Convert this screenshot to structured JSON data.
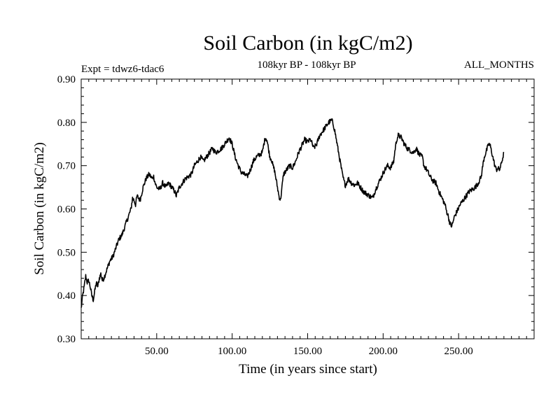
{
  "chart_data": {
    "type": "line",
    "title": "Soil Carbon (in kgC/m2)",
    "subtitle": "108kyr BP - 108kyr BP",
    "experiment": "Expt = tdwz6-tdac6",
    "period": "ALL_MONTHS",
    "xlabel": "Time (in years since start)",
    "ylabel": "Soil Carbon (in kgC/m2)",
    "xlim": [
      0,
      300
    ],
    "ylim": [
      0.3,
      0.9
    ],
    "x_ticks": [
      "50.00",
      "100.00",
      "150.00",
      "200.00",
      "250.00"
    ],
    "x_tick_values": [
      50,
      100,
      150,
      200,
      250
    ],
    "y_ticks": [
      "0.30",
      "0.40",
      "0.50",
      "0.60",
      "0.70",
      "0.80",
      "0.90"
    ],
    "y_tick_values": [
      0.3,
      0.4,
      0.5,
      0.6,
      0.7,
      0.8,
      0.9
    ],
    "grid": false,
    "series": [
      {
        "name": "Soil Carbon",
        "color": "#000000",
        "points": [
          [
            0,
            0.37
          ],
          [
            1,
            0.4
          ],
          [
            2,
            0.42
          ],
          [
            3,
            0.445
          ],
          [
            4,
            0.43
          ],
          [
            5,
            0.435
          ],
          [
            6,
            0.42
          ],
          [
            7,
            0.4
          ],
          [
            8,
            0.39
          ],
          [
            9,
            0.41
          ],
          [
            10,
            0.43
          ],
          [
            11,
            0.42
          ],
          [
            12,
            0.44
          ],
          [
            13,
            0.45
          ],
          [
            14,
            0.435
          ],
          [
            15,
            0.44
          ],
          [
            17,
            0.46
          ],
          [
            19,
            0.48
          ],
          [
            21,
            0.49
          ],
          [
            23,
            0.51
          ],
          [
            25,
            0.53
          ],
          [
            27,
            0.54
          ],
          [
            29,
            0.56
          ],
          [
            31,
            0.58
          ],
          [
            33,
            0.6
          ],
          [
            34,
            0.625
          ],
          [
            35,
            0.62
          ],
          [
            36,
            0.61
          ],
          [
            37,
            0.63
          ],
          [
            39,
            0.62
          ],
          [
            41,
            0.65
          ],
          [
            43,
            0.67
          ],
          [
            45,
            0.68
          ],
          [
            47,
            0.67
          ],
          [
            48,
            0.675
          ],
          [
            49,
            0.66
          ],
          [
            50,
            0.65
          ],
          [
            52,
            0.645
          ],
          [
            54,
            0.66
          ],
          [
            56,
            0.65
          ],
          [
            58,
            0.66
          ],
          [
            60,
            0.65
          ],
          [
            62,
            0.64
          ],
          [
            63,
            0.63
          ],
          [
            65,
            0.65
          ],
          [
            67,
            0.66
          ],
          [
            69,
            0.67
          ],
          [
            71,
            0.675
          ],
          [
            73,
            0.68
          ],
          [
            75,
            0.7
          ],
          [
            77,
            0.71
          ],
          [
            79,
            0.72
          ],
          [
            81,
            0.71
          ],
          [
            83,
            0.72
          ],
          [
            85,
            0.73
          ],
          [
            87,
            0.74
          ],
          [
            89,
            0.73
          ],
          [
            91,
            0.735
          ],
          [
            93,
            0.74
          ],
          [
            95,
            0.75
          ],
          [
            97,
            0.76
          ],
          [
            98,
            0.765
          ],
          [
            100,
            0.75
          ],
          [
            102,
            0.72
          ],
          [
            104,
            0.7
          ],
          [
            106,
            0.685
          ],
          [
            108,
            0.68
          ],
          [
            110,
            0.675
          ],
          [
            112,
            0.69
          ],
          [
            114,
            0.71
          ],
          [
            116,
            0.72
          ],
          [
            118,
            0.725
          ],
          [
            120,
            0.73
          ],
          [
            121,
            0.75
          ],
          [
            122,
            0.765
          ],
          [
            123,
            0.76
          ],
          [
            124,
            0.74
          ],
          [
            125,
            0.72
          ],
          [
            126,
            0.715
          ],
          [
            127,
            0.7
          ],
          [
            128,
            0.69
          ],
          [
            129,
            0.67
          ],
          [
            130,
            0.65
          ],
          [
            131,
            0.63
          ],
          [
            132,
            0.62
          ],
          [
            133,
            0.65
          ],
          [
            134,
            0.68
          ],
          [
            136,
            0.69
          ],
          [
            138,
            0.7
          ],
          [
            140,
            0.695
          ],
          [
            142,
            0.71
          ],
          [
            144,
            0.73
          ],
          [
            146,
            0.745
          ],
          [
            148,
            0.76
          ],
          [
            150,
            0.755
          ],
          [
            152,
            0.76
          ],
          [
            154,
            0.74
          ],
          [
            156,
            0.75
          ],
          [
            158,
            0.77
          ],
          [
            160,
            0.78
          ],
          [
            162,
            0.79
          ],
          [
            164,
            0.8
          ],
          [
            166,
            0.805
          ],
          [
            167,
            0.795
          ],
          [
            168,
            0.78
          ],
          [
            169,
            0.76
          ],
          [
            170,
            0.74
          ],
          [
            171,
            0.72
          ],
          [
            172,
            0.7
          ],
          [
            173,
            0.68
          ],
          [
            174,
            0.665
          ],
          [
            175,
            0.655
          ],
          [
            177,
            0.67
          ],
          [
            179,
            0.66
          ],
          [
            181,
            0.655
          ],
          [
            183,
            0.66
          ],
          [
            185,
            0.65
          ],
          [
            187,
            0.64
          ],
          [
            189,
            0.635
          ],
          [
            191,
            0.63
          ],
          [
            193,
            0.625
          ],
          [
            195,
            0.645
          ],
          [
            197,
            0.66
          ],
          [
            199,
            0.675
          ],
          [
            201,
            0.69
          ],
          [
            203,
            0.7
          ],
          [
            205,
            0.695
          ],
          [
            207,
            0.71
          ],
          [
            208,
            0.74
          ],
          [
            209,
            0.76
          ],
          [
            210,
            0.77
          ],
          [
            212,
            0.765
          ],
          [
            214,
            0.75
          ],
          [
            216,
            0.74
          ],
          [
            218,
            0.735
          ],
          [
            220,
            0.73
          ],
          [
            222,
            0.74
          ],
          [
            224,
            0.725
          ],
          [
            226,
            0.72
          ],
          [
            227,
            0.7
          ],
          [
            229,
            0.69
          ],
          [
            231,
            0.675
          ],
          [
            233,
            0.665
          ],
          [
            235,
            0.66
          ],
          [
            237,
            0.64
          ],
          [
            239,
            0.625
          ],
          [
            241,
            0.61
          ],
          [
            242,
            0.595
          ],
          [
            243,
            0.585
          ],
          [
            244,
            0.57
          ],
          [
            245,
            0.56
          ],
          [
            246,
            0.565
          ],
          [
            247,
            0.58
          ],
          [
            249,
            0.595
          ],
          [
            251,
            0.61
          ],
          [
            253,
            0.62
          ],
          [
            255,
            0.63
          ],
          [
            257,
            0.64
          ],
          [
            259,
            0.645
          ],
          [
            261,
            0.65
          ],
          [
            263,
            0.66
          ],
          [
            265,
            0.675
          ],
          [
            266,
            0.7
          ],
          [
            267,
            0.72
          ],
          [
            268,
            0.73
          ],
          [
            269,
            0.74
          ],
          [
            270,
            0.75
          ],
          [
            271,
            0.745
          ],
          [
            272,
            0.73
          ],
          [
            273,
            0.715
          ],
          [
            274,
            0.7
          ],
          [
            275,
            0.69
          ],
          [
            276,
            0.695
          ],
          [
            277,
            0.69
          ],
          [
            278,
            0.7
          ],
          [
            279,
            0.715
          ],
          [
            280,
            0.73
          ]
        ]
      }
    ]
  }
}
